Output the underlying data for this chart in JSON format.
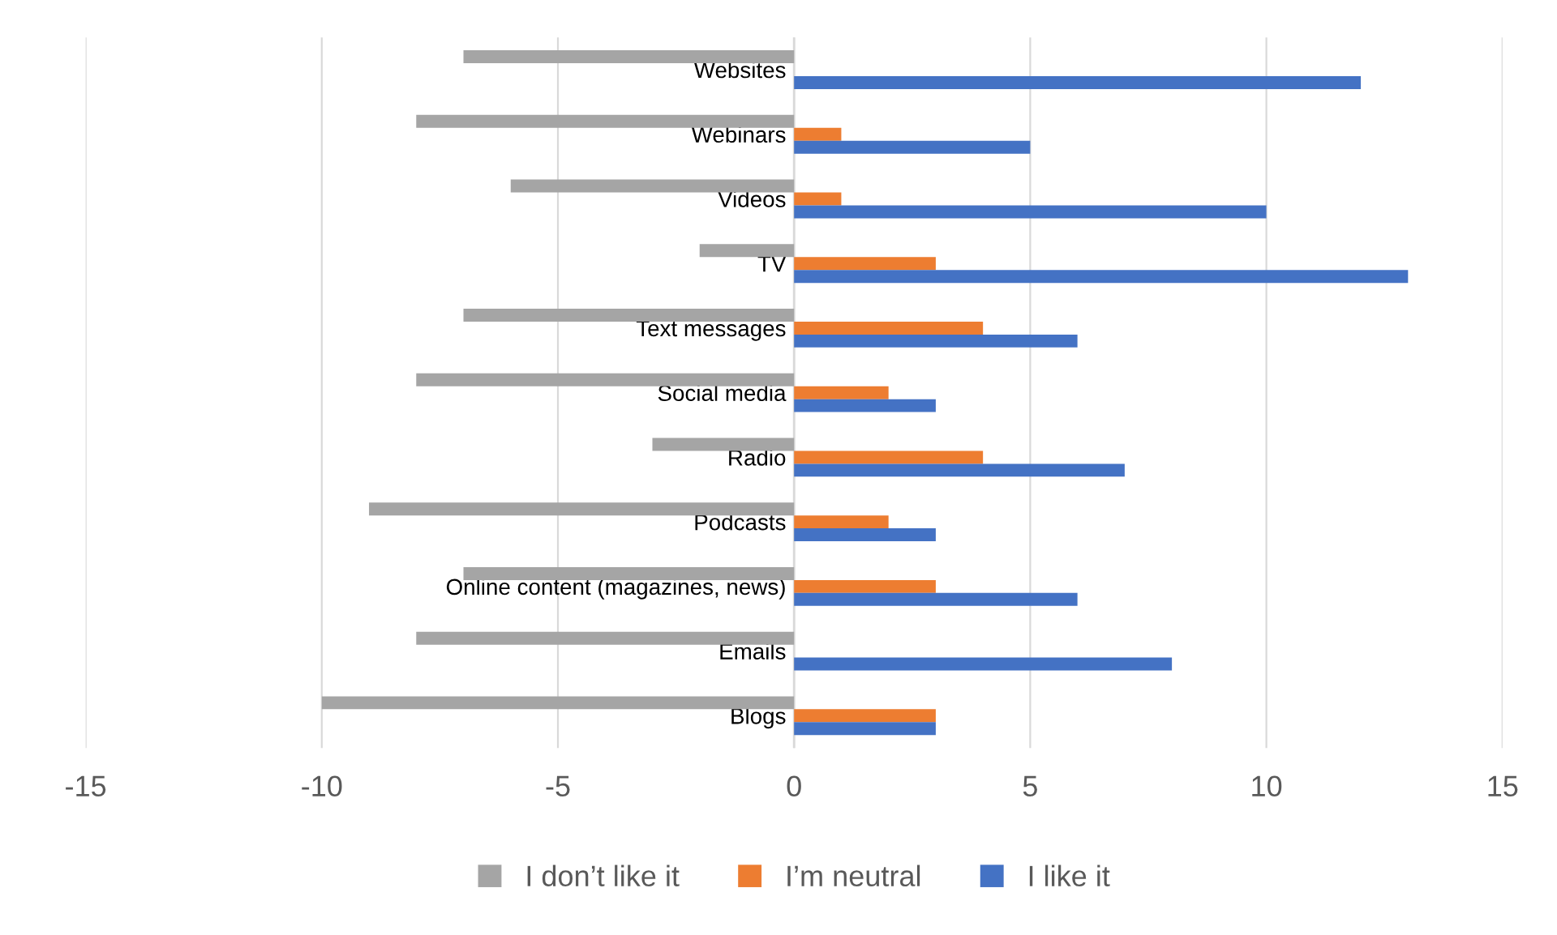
{
  "chart_data": {
    "type": "bar",
    "orientation": "horizontal",
    "categories": [
      "Websites",
      "Webinars",
      "Videos",
      "TV",
      "Text messages",
      "Social media",
      "Radio",
      "Podcasts",
      "Online content (magazines, news)",
      "Emails",
      "Blogs"
    ],
    "series": [
      {
        "name": "I don’t like it",
        "color": "#a5a5a5",
        "values": [
          -7,
          -8,
          -6,
          -2,
          -7,
          -8,
          -3,
          -9,
          -7,
          -8,
          -10
        ]
      },
      {
        "name": "I’m neutral",
        "color": "#ed7d31",
        "values": [
          0,
          1,
          1,
          3,
          4,
          2,
          4,
          2,
          3,
          0,
          3
        ]
      },
      {
        "name": "I like it",
        "color": "#4472c4",
        "values": [
          12,
          5,
          10,
          13,
          6,
          3,
          7,
          3,
          6,
          8,
          3
        ]
      }
    ],
    "xlim": [
      -15,
      15
    ],
    "xticks": [
      -15,
      -10,
      -5,
      0,
      5,
      10,
      15
    ],
    "grid": "x",
    "legend": "bottom"
  }
}
